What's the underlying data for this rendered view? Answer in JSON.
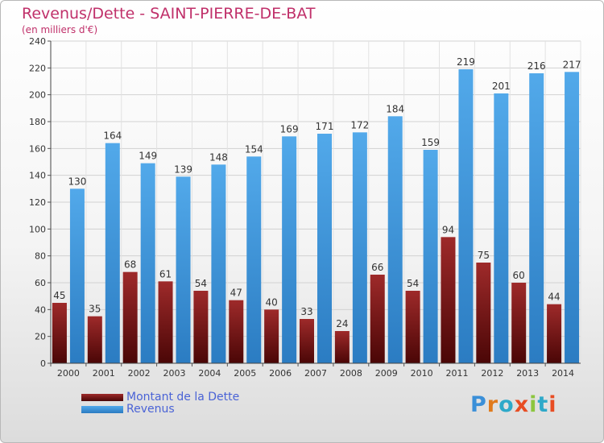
{
  "header": {
    "title": "Revenus/Dette - SAINT-PIERRE-DE-BAT",
    "subtitle": "(en milliers d'€)"
  },
  "chart_data": {
    "type": "bar",
    "title": "Revenus/Dette - SAINT-PIERRE-DE-BAT",
    "subtitle": "(en milliers d'€)",
    "categories": [
      "2000",
      "2001",
      "2002",
      "2003",
      "2004",
      "2005",
      "2006",
      "2007",
      "2008",
      "2009",
      "2010",
      "2011",
      "2012",
      "2013",
      "2014"
    ],
    "series": [
      {
        "name": "Montant de la Dette",
        "color": "#7a1414",
        "values": [
          45,
          35,
          68,
          61,
          54,
          47,
          40,
          33,
          24,
          66,
          54,
          94,
          75,
          60,
          44
        ]
      },
      {
        "name": "Revenus",
        "color": "#3d95dc",
        "values": [
          130,
          164,
          149,
          139,
          148,
          154,
          169,
          171,
          172,
          184,
          159,
          219,
          201,
          216,
          217
        ]
      }
    ],
    "ylim": [
      0,
      240
    ],
    "yticks": [
      "0",
      "20",
      "40",
      "60",
      "80",
      "100",
      "120",
      "140",
      "160",
      "180",
      "200",
      "220",
      "240"
    ],
    "grid": true,
    "legend_position": "bottom-left"
  },
  "legend": {
    "items": [
      {
        "label": "Montant de la Dette",
        "color": "#7a1414"
      },
      {
        "label": "Revenus",
        "color": "#3d95dc"
      }
    ]
  },
  "logo": {
    "text": "Proxiti",
    "colors": [
      "#3a8fd8",
      "#e07a1c",
      "#2ea9c9",
      "#e84d23",
      "#8cc63f",
      "#2ea9c9",
      "#e84d23"
    ]
  }
}
